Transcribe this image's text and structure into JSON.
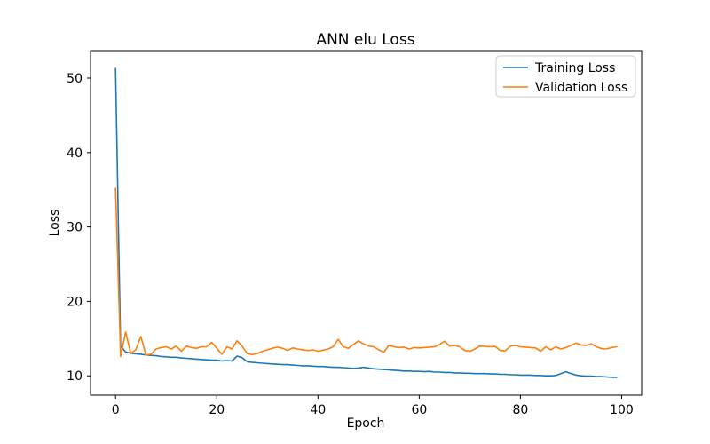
{
  "figure": {
    "title": "ANN elu Loss",
    "xlabel": "Epoch",
    "ylabel": "Loss",
    "background": "#ffffff",
    "spine_color": "#000000"
  },
  "legend": {
    "items": [
      {
        "label": "Training Loss",
        "color": "#1f77b4"
      },
      {
        "label": "Validation Loss",
        "color": "#ff7f0e"
      }
    ]
  },
  "chart_data": {
    "type": "line",
    "title": "ANN elu Loss",
    "xlabel": "Epoch",
    "ylabel": "Loss",
    "xlim": [
      -4.95,
      103.95
    ],
    "ylim": [
      7.4,
      53.7
    ],
    "xticks": [
      0,
      20,
      40,
      60,
      80,
      100
    ],
    "yticks": [
      10,
      20,
      30,
      40,
      50
    ],
    "grid": false,
    "legend_position": "upper right",
    "x": [
      0,
      1,
      2,
      3,
      4,
      5,
      6,
      7,
      8,
      9,
      10,
      11,
      12,
      13,
      14,
      15,
      16,
      17,
      18,
      19,
      20,
      21,
      22,
      23,
      24,
      25,
      26,
      27,
      28,
      29,
      30,
      31,
      32,
      33,
      34,
      35,
      36,
      37,
      38,
      39,
      40,
      41,
      42,
      43,
      44,
      45,
      46,
      47,
      48,
      49,
      50,
      51,
      52,
      53,
      54,
      55,
      56,
      57,
      58,
      59,
      60,
      61,
      62,
      63,
      64,
      65,
      66,
      67,
      68,
      69,
      70,
      71,
      72,
      73,
      74,
      75,
      76,
      77,
      78,
      79,
      80,
      81,
      82,
      83,
      84,
      85,
      86,
      87,
      88,
      89,
      90,
      91,
      92,
      93,
      94,
      95,
      96,
      97,
      98,
      99
    ],
    "series": [
      {
        "name": "Training Loss",
        "color": "#1f77b4",
        "values": [
          51.3,
          14.0,
          13.2,
          13.05,
          12.95,
          12.9,
          12.8,
          12.75,
          12.7,
          12.6,
          12.55,
          12.5,
          12.5,
          12.4,
          12.35,
          12.3,
          12.25,
          12.2,
          12.15,
          12.1,
          12.1,
          12.0,
          12.05,
          12.0,
          12.65,
          12.45,
          11.9,
          11.8,
          11.75,
          11.7,
          11.65,
          11.6,
          11.55,
          11.5,
          11.5,
          11.45,
          11.4,
          11.35,
          11.35,
          11.3,
          11.25,
          11.25,
          11.2,
          11.15,
          11.15,
          11.1,
          11.05,
          11.0,
          11.05,
          11.15,
          11.05,
          10.95,
          10.9,
          10.85,
          10.8,
          10.75,
          10.7,
          10.65,
          10.65,
          10.6,
          10.6,
          10.55,
          10.6,
          10.5,
          10.5,
          10.45,
          10.45,
          10.4,
          10.4,
          10.35,
          10.35,
          10.3,
          10.3,
          10.3,
          10.25,
          10.25,
          10.2,
          10.2,
          10.15,
          10.15,
          10.1,
          10.1,
          10.1,
          10.05,
          10.05,
          10.0,
          10.0,
          10.05,
          10.3,
          10.55,
          10.3,
          10.1,
          10.0,
          9.95,
          9.95,
          9.9,
          9.9,
          9.85,
          9.8,
          9.8
        ]
      },
      {
        "name": "Validation Loss",
        "color": "#ff7f0e",
        "values": [
          35.2,
          12.6,
          15.9,
          13.0,
          13.5,
          15.3,
          12.8,
          12.9,
          13.6,
          13.8,
          13.9,
          13.6,
          14.0,
          13.3,
          14.0,
          13.8,
          13.7,
          13.9,
          13.9,
          14.5,
          13.7,
          12.9,
          13.9,
          13.6,
          14.7,
          14.0,
          13.0,
          12.85,
          13.0,
          13.3,
          13.5,
          13.7,
          13.85,
          13.7,
          13.4,
          13.75,
          13.6,
          13.5,
          13.4,
          13.5,
          13.3,
          13.45,
          13.6,
          13.9,
          14.9,
          13.9,
          13.7,
          14.2,
          14.7,
          14.3,
          14.0,
          13.9,
          13.5,
          13.15,
          14.1,
          13.9,
          13.8,
          13.85,
          13.6,
          13.8,
          13.75,
          13.8,
          13.85,
          13.9,
          14.2,
          14.65,
          14.0,
          14.1,
          13.9,
          13.4,
          13.3,
          13.6,
          14.0,
          13.95,
          13.9,
          13.95,
          13.4,
          13.35,
          14.0,
          14.1,
          13.9,
          13.85,
          13.8,
          13.75,
          13.3,
          13.9,
          13.5,
          13.9,
          13.6,
          13.8,
          14.1,
          14.4,
          14.15,
          14.1,
          14.3,
          13.9,
          13.65,
          13.6,
          13.8,
          13.9
        ]
      }
    ]
  }
}
